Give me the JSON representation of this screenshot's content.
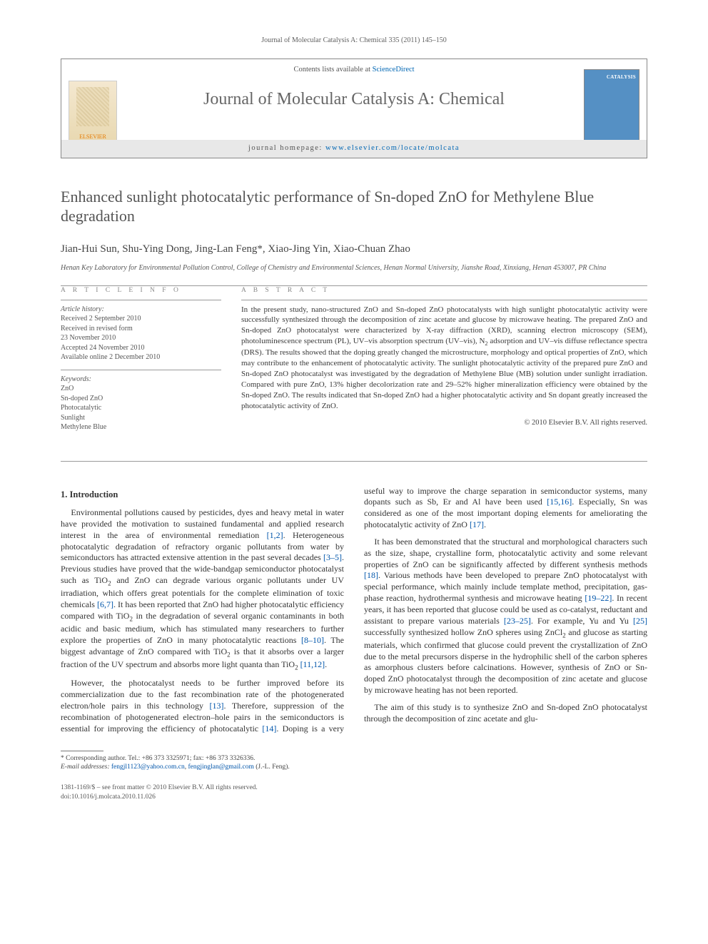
{
  "running_header": "Journal of Molecular Catalysis A: Chemical 335 (2011) 145–150",
  "masthead": {
    "contents_line_prefix": "Contents lists available at ",
    "contents_link": "ScienceDirect",
    "journal_name": "Journal of Molecular Catalysis A: Chemical",
    "homepage_prefix": "journal homepage: ",
    "homepage_url": "www.elsevier.com/locate/molcata",
    "elsevier_label": "ELSEVIER",
    "cover_label": "CATALYSIS"
  },
  "article": {
    "title": "Enhanced sunlight photocatalytic performance of Sn-doped ZnO for Methylene Blue degradation",
    "authors": "Jian-Hui Sun, Shu-Ying Dong, Jing-Lan Feng*, Xiao-Jing Yin, Xiao-Chuan Zhao",
    "affiliation": "Henan Key Laboratory for Environmental Pollution Control, College of Chemistry and Environmental Sciences, Henan Normal University, Jianshe Road, Xinxiang, Henan 453007, PR China"
  },
  "info": {
    "heading_info": "A R T I C L E   I N F O",
    "heading_abstract": "A B S T R A C T",
    "history_label": "Article history:",
    "history": [
      "Received 2 September 2010",
      "Received in revised form",
      "23 November 2010",
      "Accepted 24 November 2010",
      "Available online 2 December 2010"
    ],
    "keywords_label": "Keywords:",
    "keywords": [
      "ZnO",
      "Sn-doped ZnO",
      "Photocatalytic",
      "Sunlight",
      "Methylene Blue"
    ]
  },
  "abstract": "In the present study, nano-structured ZnO and Sn-doped ZnO photocatalysts with high sunlight photocatalytic activity were successfully synthesized through the decomposition of zinc acetate and glucose by microwave heating. The prepared ZnO and Sn-doped ZnO photocatalyst were characterized by X-ray diffraction (XRD), scanning electron microscopy (SEM), photoluminescence spectrum (PL), UV–vis absorption spectrum (UV–vis), N₂ adsorption and UV–vis diffuse reflectance spectra (DRS). The results showed that the doping greatly changed the microstructure, morphology and optical properties of ZnO, which may contribute to the enhancement of photocatalytic activity. The sunlight photocatalytic activity of the prepared pure ZnO and Sn-doped ZnO photocatalyst was investigated by the degradation of Methylene Blue (MB) solution under sunlight irradiation. Compared with pure ZnO, 13% higher decolorization rate and 29–52% higher mineralization efficiency were obtained by the Sn-doped ZnO. The results indicated that Sn-doped ZnO had a higher photocatalytic activity and Sn dopant greatly increased the photocatalytic activity of ZnO.",
  "copyright": "© 2010 Elsevier B.V. All rights reserved.",
  "section1_heading": "1. Introduction",
  "para1": "Environmental pollutions caused by pesticides, dyes and heavy metal in water have provided the motivation to sustained fundamental and applied research interest in the area of environmental remediation [1,2]. Heterogeneous photocatalytic degradation of refractory organic pollutants from water by semiconductors has attracted extensive attention in the past several decades [3–5]. Previous studies have proved that the wide-bandgap semiconductor photocatalyst such as TiO₂ and ZnO can degrade various organic pollutants under UV irradiation, which offers great potentials for the complete elimination of toxic chemicals [6,7]. It has been reported that ZnO had higher photocatalytic efficiency compared with TiO₂ in the degradation of several organic contaminants in both acidic and basic medium, which has stimulated many researchers to further explore the properties of ZnO in many photocatalytic reactions [8–10]. The biggest advantage of ZnO compared with TiO₂ is that it absorbs over a larger fraction of the UV spectrum and absorbs more light quanta than TiO₂ [11,12].",
  "para2": "However, the photocatalyst needs to be further improved before its commercialization due to the fast recombination rate of the photogenerated electron/hole pairs in this technology [13]. Therefore, suppression of the recombination of photogenerated electron–hole pairs in the semiconductors is essential for improving the efficiency of photocatalytic [14]. Doping is a very useful way to improve the charge separation in semiconductor systems, many dopants such as Sb, Er and Al have been used [15,16]. Especially, Sn was considered as one of the most important doping elements for ameliorating the photocatalytic activity of ZnO [17].",
  "para3": "It has been demonstrated that the structural and morphological characters such as the size, shape, crystalline form, photocatalytic activity and some relevant properties of ZnO can be significantly affected by different synthesis methods [18]. Various methods have been developed to prepare ZnO photocatalyst with special performance, which mainly include template method, precipitation, gas-phase reaction, hydrothermal synthesis and microwave heating [19–22]. In recent years, it has been reported that glucose could be used as co-catalyst, reductant and assistant to prepare various materials [23–25]. For example, Yu and Yu [25] successfully synthesized hollow ZnO spheres using ZnCl₂ and glucose as starting materials, which confirmed that glucose could prevent the crystallization of ZnO due to the metal precursors disperse in the hydrophilic shell of the carbon spheres as amorphous clusters before calcinations. However, synthesis of ZnO or Sn-doped ZnO photocatalyst through the decomposition of zinc acetate and glucose by microwave heating has not been reported.",
  "para4": "The aim of this study is to synthesize ZnO and Sn-doped ZnO photocatalyst through the decomposition of zinc acetate and glu-",
  "footnote": {
    "corresponding": "* Corresponding author. Tel.: +86 373 3325971; fax: +86 373 3326336.",
    "email_label": "E-mail addresses: ",
    "email1": "fengjl1123@yahoo.com.cn",
    "email_sep": ", ",
    "email2": "fengjinglan@gmail.com",
    "email_suffix": " (J.-L. Feng)."
  },
  "bottom": {
    "line1": "1381-1169/$ – see front matter © 2010 Elsevier B.V. All rights reserved.",
    "line2": "doi:10.1016/j.molcata.2010.11.026"
  },
  "colors": {
    "link": "#0066b3",
    "ref": "#0055aa",
    "text": "#3a3a3a",
    "heading_gray": "#888888",
    "cover_bg": "#5590c4"
  }
}
